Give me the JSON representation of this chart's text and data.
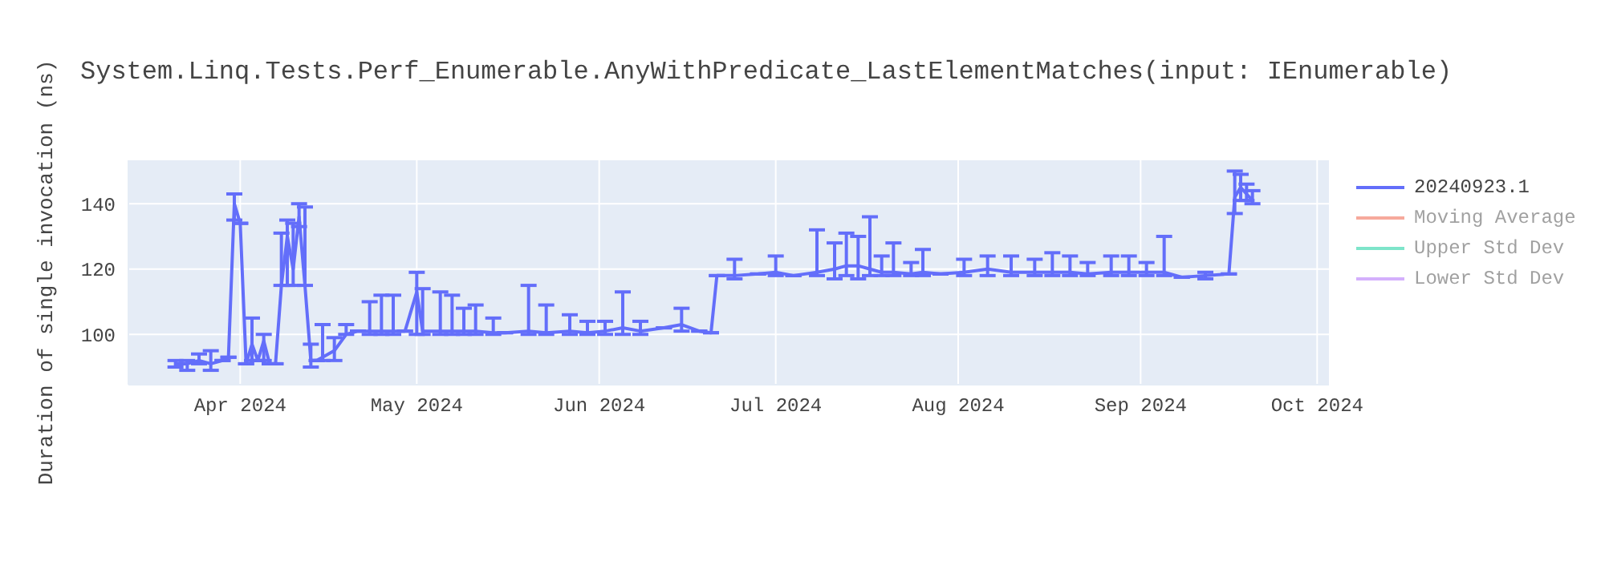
{
  "chart_data": {
    "type": "line",
    "title": "System.Linq.Tests.Perf_Enumerable.AnyWithPredicate_LastElementMatches(input: IEnumerable)",
    "ylabel": "Duration of single invocation (ns)",
    "x": [
      "2024-03-21",
      "2024-03-23",
      "2024-03-25",
      "2024-03-27",
      "2024-03-29",
      "2024-03-30",
      "2024-03-31",
      "2024-04-01",
      "2024-04-02",
      "2024-04-03",
      "2024-04-04",
      "2024-04-05",
      "2024-04-06",
      "2024-04-07",
      "2024-04-08",
      "2024-04-09",
      "2024-04-10",
      "2024-04-11",
      "2024-04-12",
      "2024-04-13",
      "2024-04-14",
      "2024-04-15",
      "2024-04-17",
      "2024-04-19",
      "2024-04-21",
      "2024-04-23",
      "2024-04-25",
      "2024-04-27",
      "2024-04-29",
      "2024-05-01",
      "2024-05-02",
      "2024-05-05",
      "2024-05-07",
      "2024-05-09",
      "2024-05-11",
      "2024-05-14",
      "2024-05-16",
      "2024-05-20",
      "2024-05-23",
      "2024-05-27",
      "2024-05-30",
      "2024-06-02",
      "2024-06-05",
      "2024-06-08",
      "2024-06-12",
      "2024-06-15",
      "2024-06-18",
      "2024-06-20",
      "2024-06-21",
      "2024-06-24",
      "2024-06-28",
      "2024-07-01",
      "2024-07-04",
      "2024-07-08",
      "2024-07-11",
      "2024-07-13",
      "2024-07-15",
      "2024-07-17",
      "2024-07-19",
      "2024-07-21",
      "2024-07-24",
      "2024-07-26",
      "2024-07-29",
      "2024-08-02",
      "2024-08-06",
      "2024-08-10",
      "2024-08-14",
      "2024-08-17",
      "2024-08-20",
      "2024-08-23",
      "2024-08-27",
      "2024-08-30",
      "2024-09-02",
      "2024-09-05",
      "2024-09-08",
      "2024-09-12",
      "2024-09-16",
      "2024-09-17",
      "2024-09-18",
      "2024-09-19",
      "2024-09-20"
    ],
    "series": [
      {
        "name": "20240923.1",
        "color": "#636efa",
        "values": [
          91,
          91,
          92,
          91,
          92,
          93,
          140,
          134,
          91,
          97,
          92,
          98,
          91,
          91,
          115,
          130,
          120,
          136,
          115,
          92,
          92,
          93,
          95,
          100,
          101,
          101,
          101,
          101,
          101,
          113,
          101,
          101,
          101,
          101,
          101,
          100.5,
          100.5,
          101,
          100.5,
          101,
          100.5,
          101,
          102,
          101,
          102,
          103,
          101,
          100.5,
          118,
          118,
          118.5,
          119,
          118,
          119,
          120,
          121,
          121,
          120,
          119,
          119,
          118.5,
          119,
          118.5,
          119,
          120,
          119,
          119,
          119,
          119,
          118.5,
          119,
          119,
          119,
          119,
          117.5,
          118,
          118.5,
          142,
          145,
          143,
          141
        ],
        "errors": [
          [
            90,
            92
          ],
          [
            89,
            92
          ],
          [
            91,
            94
          ],
          [
            89,
            95
          ],
          null,
          null,
          [
            135,
            143
          ],
          null,
          null,
          [
            92,
            105
          ],
          null,
          [
            92,
            100
          ],
          null,
          null,
          [
            115,
            131
          ],
          [
            115,
            135
          ],
          [
            115,
            134
          ],
          [
            133,
            140
          ],
          [
            115,
            139
          ],
          [
            90,
            97
          ],
          null,
          [
            92,
            103
          ],
          [
            92,
            99
          ],
          [
            100,
            103
          ],
          null,
          [
            100,
            110
          ],
          [
            100,
            112
          ],
          [
            100,
            112
          ],
          null,
          [
            100,
            119
          ],
          [
            100,
            114
          ],
          [
            100,
            113
          ],
          [
            100,
            112
          ],
          [
            100,
            108
          ],
          [
            100,
            109
          ],
          [
            100,
            105
          ],
          null,
          [
            100,
            115
          ],
          [
            100,
            109
          ],
          [
            100,
            106
          ],
          [
            100,
            104
          ],
          [
            100,
            104
          ],
          [
            100,
            113
          ],
          [
            100,
            104
          ],
          null,
          [
            101,
            108
          ],
          null,
          null,
          null,
          [
            117,
            123
          ],
          null,
          [
            118,
            124
          ],
          null,
          [
            118,
            132
          ],
          [
            117,
            128
          ],
          [
            118,
            131
          ],
          [
            117,
            130
          ],
          [
            118,
            136
          ],
          [
            118,
            124
          ],
          [
            118,
            128
          ],
          [
            118,
            122
          ],
          [
            118,
            126
          ],
          null,
          [
            118,
            123
          ],
          [
            118,
            124
          ],
          [
            118,
            124
          ],
          [
            118,
            123
          ],
          [
            118,
            125
          ],
          [
            118,
            124
          ],
          [
            118,
            122
          ],
          [
            118,
            124
          ],
          [
            118,
            124
          ],
          [
            118,
            122
          ],
          [
            118,
            130
          ],
          null,
          [
            117,
            119
          ],
          null,
          [
            137,
            150
          ],
          [
            141,
            149
          ],
          [
            141,
            146
          ],
          [
            140,
            144
          ]
        ]
      },
      {
        "name": "Moving Average",
        "color": "#ef553b",
        "values": [
          null,
          null,
          null,
          null,
          null,
          null,
          null,
          null,
          null,
          null,
          null,
          null,
          null,
          null,
          null,
          null,
          null,
          null,
          null,
          null,
          null,
          null,
          null,
          null,
          null,
          null,
          null,
          null,
          null,
          null,
          null,
          null,
          null,
          null,
          null,
          null,
          null,
          null,
          null,
          null,
          null,
          null,
          null,
          null,
          null,
          null,
          null,
          null,
          null,
          null,
          null,
          null,
          null,
          null,
          null,
          null,
          null,
          null,
          null,
          null,
          null,
          null,
          null,
          null,
          null,
          null,
          null,
          null,
          null,
          null,
          null,
          null,
          null,
          null,
          null,
          null,
          null,
          null,
          null,
          null,
          null
        ]
      },
      {
        "name": "Upper Std Dev",
        "color": "#00cc96",
        "values": [
          null,
          null,
          null,
          null,
          null,
          null,
          null,
          null,
          null,
          null,
          null,
          null,
          null,
          null,
          null,
          null,
          null,
          null,
          null,
          null,
          null,
          null,
          null,
          null,
          null,
          null,
          null,
          null,
          null,
          null,
          null,
          null,
          null,
          null,
          null,
          null,
          null,
          null,
          null,
          null,
          null,
          null,
          null,
          null,
          null,
          null,
          null,
          null,
          null,
          null,
          null,
          null,
          null,
          null,
          null,
          null,
          null,
          null,
          null,
          null,
          null,
          null,
          null,
          null,
          null,
          null,
          null,
          null,
          null,
          null,
          null,
          null,
          null,
          null,
          null,
          null,
          null,
          null,
          null,
          null,
          null
        ]
      },
      {
        "name": "Lower Std Dev",
        "color": "#ab63fa",
        "values": [
          null,
          null,
          null,
          null,
          null,
          null,
          null,
          null,
          null,
          null,
          null,
          null,
          null,
          null,
          null,
          null,
          null,
          null,
          null,
          null,
          null,
          null,
          null,
          null,
          null,
          null,
          null,
          null,
          null,
          null,
          null,
          null,
          null,
          null,
          null,
          null,
          null,
          null,
          null,
          null,
          null,
          null,
          null,
          null,
          null,
          null,
          null,
          null,
          null,
          null,
          null,
          null,
          null,
          null,
          null,
          null,
          null,
          null,
          null,
          null,
          null,
          null,
          null,
          null,
          null,
          null,
          null,
          null,
          null,
          null,
          null,
          null,
          null,
          null,
          null,
          null,
          null,
          null,
          null,
          null,
          null
        ]
      }
    ],
    "xlim": [
      "2024-03-13",
      "2024-10-03"
    ],
    "xticks": [
      {
        "value": "2024-04-01",
        "label": "Apr 2024"
      },
      {
        "value": "2024-05-01",
        "label": "May 2024"
      },
      {
        "value": "2024-06-01",
        "label": "Jun 2024"
      },
      {
        "value": "2024-07-01",
        "label": "Jul 2024"
      },
      {
        "value": "2024-08-01",
        "label": "Aug 2024"
      },
      {
        "value": "2024-09-01",
        "label": "Sep 2024"
      },
      {
        "value": "2024-10-01",
        "label": "Oct 2024"
      }
    ],
    "ylim": [
      84.6,
      153.3
    ],
    "yticks": [
      100,
      120,
      140
    ],
    "grid": true,
    "legend": "top right"
  }
}
